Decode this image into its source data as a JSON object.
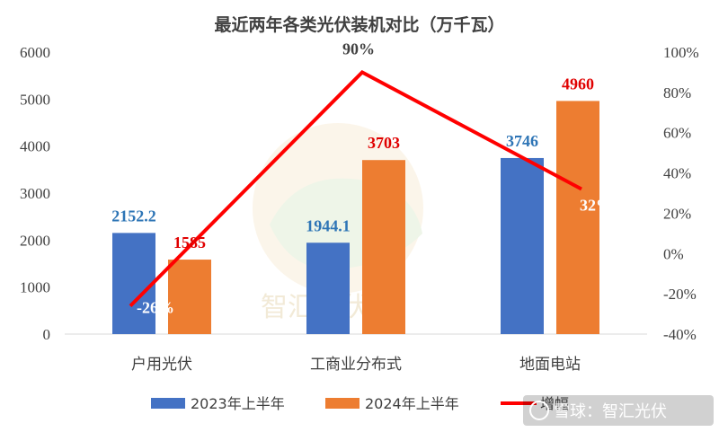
{
  "chart_data": {
    "type": "bar",
    "title": "最近两年各类光伏装机对比（万千瓦）",
    "categories": [
      "户用光伏",
      "工商业分布式",
      "地面电站"
    ],
    "series": [
      {
        "name": "2023年上半年",
        "values": [
          2152.2,
          1944.1,
          3746
        ],
        "labels": [
          "2152.2",
          "1944.1",
          "3746"
        ],
        "color": "#4472c4",
        "label_color": "#2e75b6"
      },
      {
        "name": "2024年上半年",
        "values": [
          1585,
          3703,
          4960
        ],
        "labels": [
          "1585",
          "3703",
          "4960"
        ],
        "color": "#ed7d31",
        "label_color": "#e00000"
      }
    ],
    "line": {
      "name": "增幅",
      "values": [
        -26,
        90,
        32
      ],
      "labels": [
        "-26%",
        "90%",
        "32%"
      ],
      "color": "#ff0000",
      "axis": "right"
    },
    "ylim": [
      0,
      6000
    ],
    "yticks": [
      "0",
      "1000",
      "2000",
      "3000",
      "4000",
      "5000",
      "6000"
    ],
    "y2lim": [
      -40,
      100
    ],
    "y2ticks": [
      "-40%",
      "-20%",
      "0%",
      "20%",
      "40%",
      "60%",
      "80%",
      "100%"
    ],
    "legend_position": "bottom",
    "grid": false
  },
  "watermark": {
    "center_text": "智汇光伏",
    "corner_text": "雪球：智汇光伏"
  }
}
